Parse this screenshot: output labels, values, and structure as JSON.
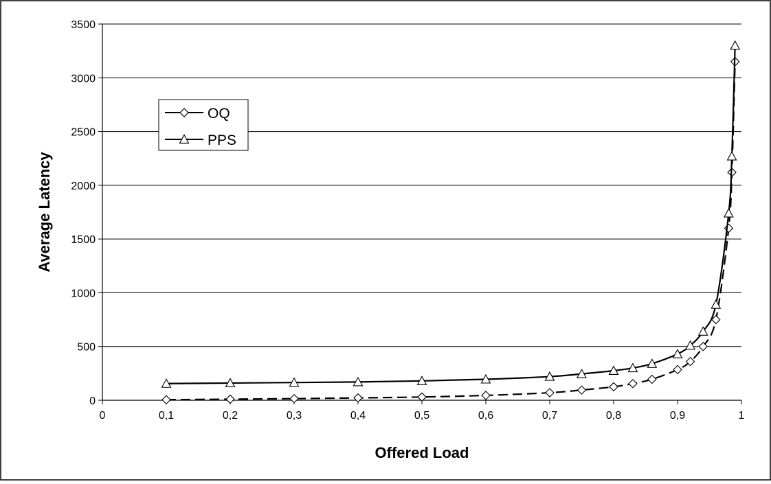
{
  "chart_data": {
    "type": "line",
    "title": "",
    "xlabel": "Offered Load",
    "ylabel": "Average Latency",
    "xlim": [
      0,
      1
    ],
    "ylim": [
      0,
      3500
    ],
    "x_ticks": [
      "0",
      "0,1",
      "0,2",
      "0,3",
      "0,4",
      "0,5",
      "0,6",
      "0,7",
      "0,8",
      "0,9",
      "1"
    ],
    "y_ticks": [
      "0",
      "500",
      "1000",
      "1500",
      "2000",
      "2500",
      "3000",
      "3500"
    ],
    "grid": "horizontal",
    "legend_position": "upper-left",
    "series": [
      {
        "name": "OQ",
        "marker": "diamond",
        "line_style": "dashed",
        "color": "#000000",
        "x": [
          0.1,
          0.2,
          0.3,
          0.4,
          0.5,
          0.6,
          0.7,
          0.75,
          0.8,
          0.83,
          0.86,
          0.9,
          0.92,
          0.94,
          0.96,
          0.98,
          0.985,
          0.99
        ],
        "y": [
          5,
          10,
          15,
          22,
          30,
          45,
          70,
          95,
          125,
          155,
          195,
          285,
          360,
          500,
          750,
          1600,
          2120,
          3150
        ]
      },
      {
        "name": "PPS",
        "marker": "triangle",
        "line_style": "solid",
        "color": "#000000",
        "x": [
          0.1,
          0.2,
          0.3,
          0.4,
          0.5,
          0.6,
          0.7,
          0.75,
          0.8,
          0.83,
          0.86,
          0.9,
          0.92,
          0.94,
          0.96,
          0.98,
          0.985,
          0.99
        ],
        "y": [
          155,
          160,
          165,
          170,
          180,
          195,
          220,
          245,
          275,
          300,
          340,
          430,
          510,
          640,
          890,
          1740,
          2270,
          3300
        ]
      }
    ]
  }
}
